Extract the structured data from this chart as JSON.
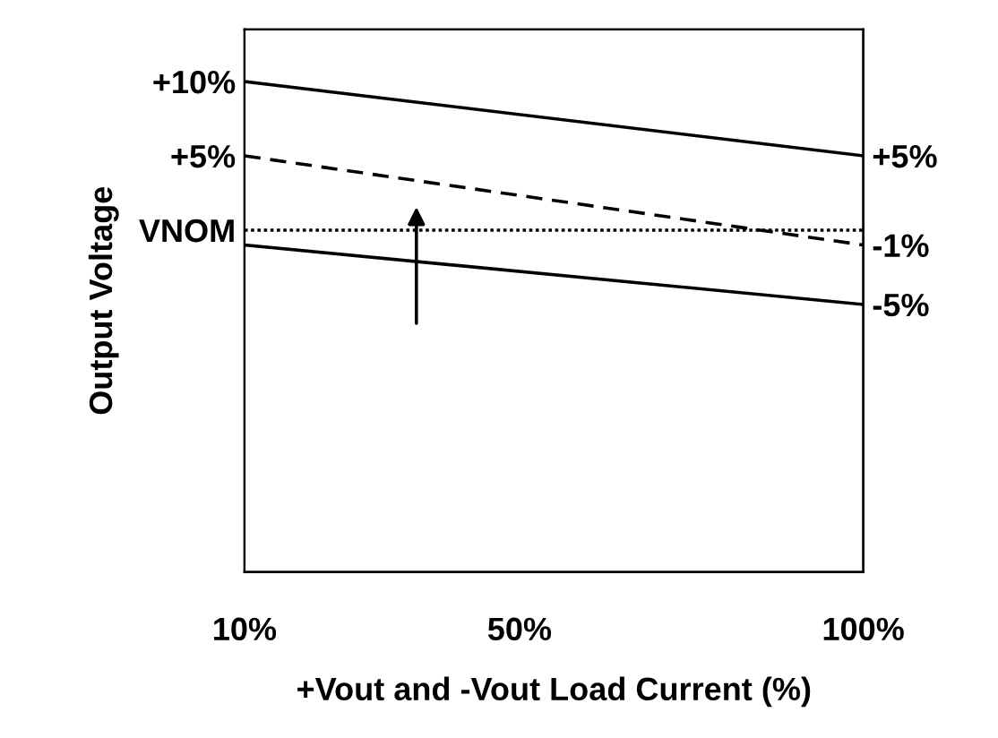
{
  "chart_data": {
    "type": "line",
    "xlabel": "+Vout and -Vout Load Current (%)",
    "ylabel": "Output Voltage",
    "x": [
      10,
      100
    ],
    "series": [
      {
        "color": "#000000",
        "line_style": "solid",
        "values": [
          10,
          5
        ]
      },
      {
        "color": "#000000",
        "line_style": "dashed",
        "values": [
          5,
          -1
        ]
      },
      {
        "color": "#000000",
        "line_style": "dotted",
        "values": [
          0,
          0
        ]
      },
      {
        "color": "#000000",
        "line_style": "solid",
        "values": [
          -1,
          -5
        ]
      }
    ],
    "xlim": [
      10,
      100
    ],
    "xticks": [
      {
        "value": 10,
        "label": "10%"
      },
      {
        "value": 50,
        "label": "50%"
      },
      {
        "value": 100,
        "label": "100%"
      }
    ],
    "ylim": [
      -23,
      13.5
    ],
    "yticks": [
      {
        "value": 10,
        "label": "+10%"
      },
      {
        "value": 5,
        "label": "+5%"
      },
      {
        "value": 0,
        "label": "VNOM"
      }
    ],
    "y2lim": [
      -23,
      13.5
    ],
    "y2ticks": [
      {
        "value": 5,
        "label": "+5%"
      },
      {
        "value": -1,
        "label": "-1%"
      },
      {
        "value": -5,
        "label": "-5%"
      }
    ],
    "grid": false,
    "legend": false,
    "marker": "none"
  }
}
